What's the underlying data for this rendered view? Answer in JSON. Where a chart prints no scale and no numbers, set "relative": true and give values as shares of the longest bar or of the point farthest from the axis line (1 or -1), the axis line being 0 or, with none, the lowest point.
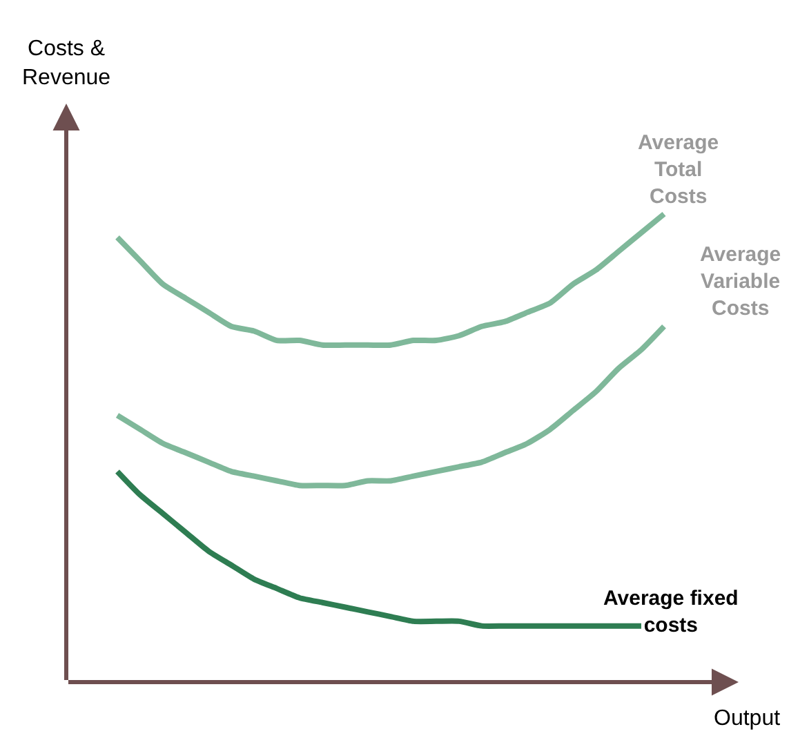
{
  "chart_data": {
    "type": "line",
    "relative": true,
    "xlabel": "Output",
    "annotations": [
      "Costs &\nRevenue"
    ],
    "legend": false,
    "marker": "none",
    "line_style": "solid",
    "tick_labels": false,
    "categories": [
      null,
      null,
      null,
      null,
      null,
      null,
      null,
      null,
      null,
      null,
      null,
      null,
      null,
      null,
      null,
      null,
      null,
      null,
      null,
      null,
      null,
      null,
      null,
      null,
      null
    ],
    "series": [
      {
        "name": "Average\nTotal\nCosts",
        "color": "#7fb89a",
        "values": [
          0.95,
          0.9,
          0.85,
          0.82,
          0.79,
          0.76,
          0.75,
          0.73,
          0.73,
          0.72,
          0.72,
          0.72,
          0.72,
          0.73,
          0.73,
          0.74,
          0.76,
          0.77,
          0.79,
          0.81,
          0.85,
          0.88,
          0.92,
          0.96,
          1
        ]
      },
      {
        "name": "Average\nVariable\nCosts",
        "color": "#7fb89a",
        "values": [
          0.57,
          0.54,
          0.51,
          0.49,
          0.47,
          0.45,
          0.44,
          0.43,
          0.42,
          0.42,
          0.42,
          0.43,
          0.43,
          0.44,
          0.45,
          0.46,
          0.47,
          0.49,
          0.51,
          0.54,
          0.58,
          0.62,
          0.67,
          0.71,
          0.76
        ]
      },
      {
        "name": "Average fixed\ncosts",
        "color": "#2e7d52",
        "values": [
          0.45,
          0.4,
          0.36,
          0.32,
          0.28,
          0.25,
          0.22,
          0.2,
          0.18,
          0.17,
          0.16,
          0.15,
          0.14,
          0.13,
          0.13,
          0.13,
          0.12,
          0.12,
          0.12,
          0.12,
          0.12,
          0.12,
          0.12,
          0.12,
          null
        ]
      }
    ]
  }
}
